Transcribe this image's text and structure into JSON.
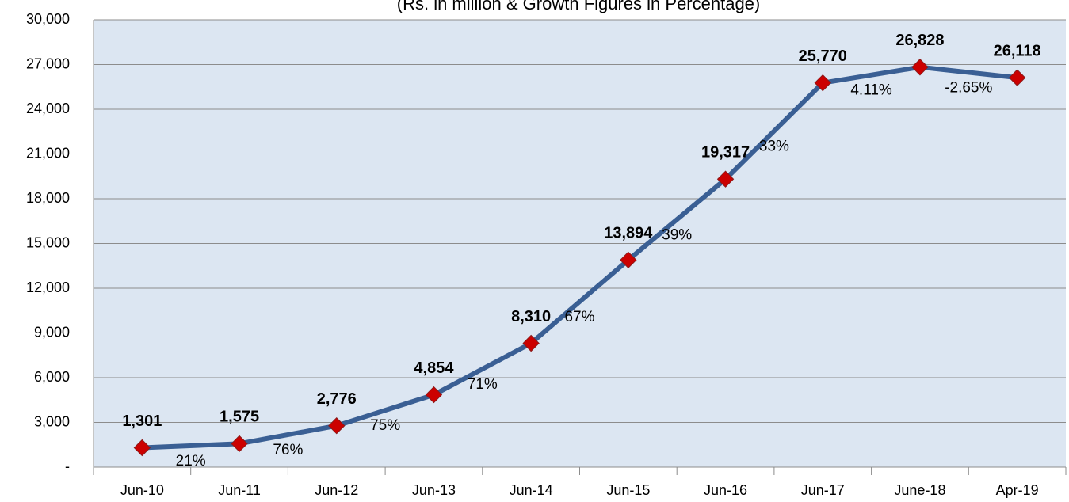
{
  "chart_data": {
    "type": "line",
    "title": "(Rs. in million & Growth Figures in Percentage)",
    "categories": [
      "Jun-10",
      "Jun-11",
      "Jun-12",
      "Jun-13",
      "Jun-14",
      "Jun-15",
      "Jun-16",
      "Jun-17",
      "June-18",
      "Apr-19"
    ],
    "series": [
      {
        "color": "#3a5f94",
        "marker_color": "#cc0000",
        "values": [
          1301,
          1575,
          2776,
          4854,
          8310,
          13894,
          19317,
          25770,
          26828,
          26118
        ],
        "value_labels": [
          "1,301",
          "1,575",
          "2,776",
          "4,854",
          "8,310",
          "13,894",
          "19,317",
          "25,770",
          "26,828",
          "26,118"
        ]
      }
    ],
    "growth": {
      "values": [
        21,
        76,
        75,
        71,
        67,
        39,
        33,
        4.11,
        -2.65
      ],
      "value_labels": [
        "21%",
        "76%",
        "75%",
        "71%",
        "67%",
        "39%",
        "33%",
        "4.11%",
        "-2.65%"
      ],
      "color": "#222222",
      "negative_color": "#ff0000"
    },
    "ylim": [
      0,
      30000
    ],
    "yticks": [
      {
        "value": 0,
        "label": "-"
      },
      {
        "value": 3000,
        "label": "3,000"
      },
      {
        "value": 6000,
        "label": "6,000"
      },
      {
        "value": 9000,
        "label": "9,000"
      },
      {
        "value": 12000,
        "label": "12,000"
      },
      {
        "value": 15000,
        "label": "15,000"
      },
      {
        "value": 18000,
        "label": "18,000"
      },
      {
        "value": 21000,
        "label": "21,000"
      },
      {
        "value": 24000,
        "label": "24,000"
      },
      {
        "value": 27000,
        "label": "27,000"
      },
      {
        "value": 30000,
        "label": "30,000"
      }
    ],
    "grid": true,
    "plot_background": "#dce6f2"
  }
}
